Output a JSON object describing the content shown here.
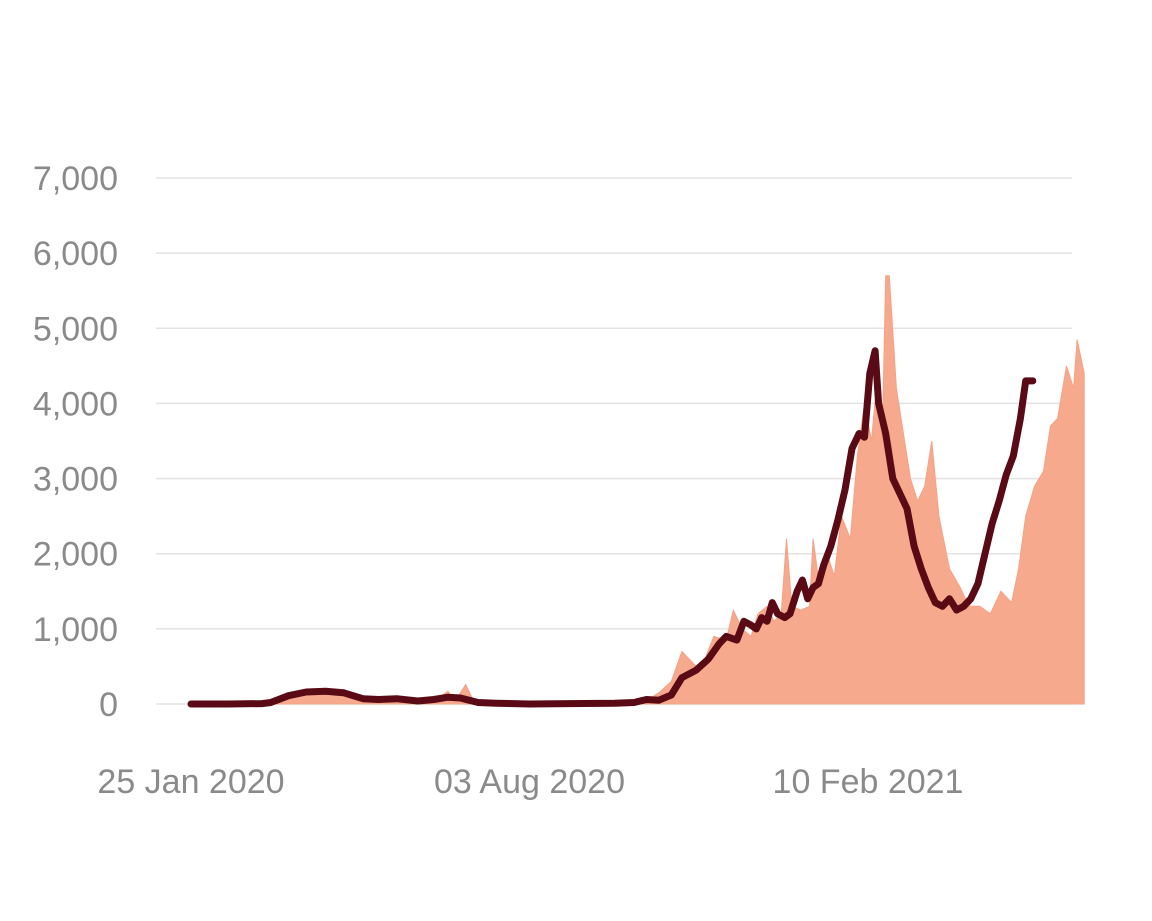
{
  "chart_data": {
    "type": "area",
    "title": "",
    "xlabel": "",
    "ylabel": "",
    "x_range": [
      "2020-01-25",
      "2021-06-15"
    ],
    "ylim": [
      0,
      7000
    ],
    "y_ticks": [
      0,
      1000,
      2000,
      3000,
      4000,
      5000,
      6000,
      7000
    ],
    "y_tick_labels": [
      "0",
      "1,000",
      "2,000",
      "3,000",
      "4,000",
      "5,000",
      "6,000",
      "7,000"
    ],
    "x_ticks": [
      "2020-01-25",
      "2020-08-03",
      "2021-02-10"
    ],
    "x_tick_labels": [
      "25 Jan 2020",
      "03 Aug 2020",
      "10 Feb 2021"
    ],
    "grid": true,
    "legend": "none",
    "colors": {
      "daily": "#f7a98e",
      "average": "#5a0a14",
      "grid": "#e3e3e3",
      "ticks": "#8a8a8a"
    },
    "series": [
      {
        "type": "area",
        "points": [
          [
            "2020-01-25",
            0
          ],
          [
            "2020-02-20",
            0
          ],
          [
            "2020-03-10",
            20
          ],
          [
            "2020-03-20",
            130
          ],
          [
            "2020-03-30",
            170
          ],
          [
            "2020-04-10",
            190
          ],
          [
            "2020-04-20",
            150
          ],
          [
            "2020-05-01",
            110
          ],
          [
            "2020-05-10",
            60
          ],
          [
            "2020-05-20",
            80
          ],
          [
            "2020-06-01",
            50
          ],
          [
            "2020-06-10",
            40
          ],
          [
            "2020-06-18",
            170
          ],
          [
            "2020-06-22",
            40
          ],
          [
            "2020-06-28",
            260
          ],
          [
            "2020-07-02",
            60
          ],
          [
            "2020-07-10",
            30
          ],
          [
            "2020-07-25",
            10
          ],
          [
            "2020-08-03",
            5
          ],
          [
            "2020-08-20",
            15
          ],
          [
            "2020-09-10",
            15
          ],
          [
            "2020-09-20",
            30
          ],
          [
            "2020-10-01",
            20
          ],
          [
            "2020-10-10",
            70
          ],
          [
            "2020-10-15",
            150
          ],
          [
            "2020-10-22",
            300
          ],
          [
            "2020-10-28",
            700
          ],
          [
            "2020-11-05",
            500
          ],
          [
            "2020-11-10",
            600
          ],
          [
            "2020-11-15",
            900
          ],
          [
            "2020-11-22",
            850
          ],
          [
            "2020-11-26",
            1250
          ],
          [
            "2020-12-01",
            1000
          ],
          [
            "2020-12-06",
            900
          ],
          [
            "2020-12-10",
            1200
          ],
          [
            "2020-12-15",
            1300
          ],
          [
            "2020-12-19",
            1100
          ],
          [
            "2020-12-23",
            1200
          ],
          [
            "2020-12-26",
            2200
          ],
          [
            "2020-12-29",
            1300
          ],
          [
            "2021-01-03",
            1250
          ],
          [
            "2021-01-08",
            1300
          ],
          [
            "2021-01-10",
            2200
          ],
          [
            "2021-01-14",
            1500
          ],
          [
            "2021-01-18",
            2000
          ],
          [
            "2021-01-22",
            1700
          ],
          [
            "2021-01-26",
            2500
          ],
          [
            "2021-01-31",
            2200
          ],
          [
            "2021-02-04",
            3300
          ],
          [
            "2021-02-08",
            4000
          ],
          [
            "2021-02-12",
            3500
          ],
          [
            "2021-02-15",
            4300
          ],
          [
            "2021-02-18",
            3500
          ],
          [
            "2021-02-20",
            5700
          ],
          [
            "2021-02-22",
            5700
          ],
          [
            "2021-02-26",
            4200
          ],
          [
            "2021-03-02",
            3600
          ],
          [
            "2021-03-06",
            3000
          ],
          [
            "2021-03-10",
            2700
          ],
          [
            "2021-03-14",
            2900
          ],
          [
            "2021-03-18",
            3500
          ],
          [
            "2021-03-22",
            2500
          ],
          [
            "2021-03-28",
            1800
          ],
          [
            "2021-04-03",
            1550
          ],
          [
            "2021-04-08",
            1300
          ],
          [
            "2021-04-14",
            1300
          ],
          [
            "2021-04-20",
            1200
          ],
          [
            "2021-04-26",
            1500
          ],
          [
            "2021-05-02",
            1350
          ],
          [
            "2021-05-06",
            1800
          ],
          [
            "2021-05-10",
            2500
          ],
          [
            "2021-05-15",
            2900
          ],
          [
            "2021-05-20",
            3100
          ],
          [
            "2021-05-24",
            3700
          ],
          [
            "2021-05-28",
            3800
          ],
          [
            "2021-06-02",
            4500
          ],
          [
            "2021-06-06",
            4200
          ],
          [
            "2021-06-08",
            4850
          ],
          [
            "2021-06-12",
            4400
          ]
        ]
      },
      {
        "type": "line",
        "points": [
          [
            "2020-01-25",
            0
          ],
          [
            "2020-02-15",
            0
          ],
          [
            "2020-03-05",
            5
          ],
          [
            "2020-03-10",
            20
          ],
          [
            "2020-03-20",
            110
          ],
          [
            "2020-03-30",
            160
          ],
          [
            "2020-04-10",
            170
          ],
          [
            "2020-04-20",
            150
          ],
          [
            "2020-05-01",
            70
          ],
          [
            "2020-05-10",
            60
          ],
          [
            "2020-05-20",
            70
          ],
          [
            "2020-06-01",
            40
          ],
          [
            "2020-06-10",
            60
          ],
          [
            "2020-06-18",
            90
          ],
          [
            "2020-06-25",
            80
          ],
          [
            "2020-07-05",
            20
          ],
          [
            "2020-07-15",
            10
          ],
          [
            "2020-08-03",
            0
          ],
          [
            "2020-08-25",
            5
          ],
          [
            "2020-09-20",
            10
          ],
          [
            "2020-10-01",
            20
          ],
          [
            "2020-10-08",
            60
          ],
          [
            "2020-10-15",
            50
          ],
          [
            "2020-10-22",
            120
          ],
          [
            "2020-10-28",
            350
          ],
          [
            "2020-11-05",
            450
          ],
          [
            "2020-11-12",
            600
          ],
          [
            "2020-11-18",
            800
          ],
          [
            "2020-11-22",
            900
          ],
          [
            "2020-11-28",
            850
          ],
          [
            "2020-12-02",
            1100
          ],
          [
            "2020-12-06",
            1050
          ],
          [
            "2020-12-09",
            1000
          ],
          [
            "2020-12-12",
            1150
          ],
          [
            "2020-12-15",
            1100
          ],
          [
            "2020-12-18",
            1350
          ],
          [
            "2020-12-21",
            1200
          ],
          [
            "2020-12-25",
            1150
          ],
          [
            "2020-12-28",
            1200
          ],
          [
            "2021-01-01",
            1500
          ],
          [
            "2021-01-04",
            1650
          ],
          [
            "2021-01-07",
            1400
          ],
          [
            "2021-01-10",
            1550
          ],
          [
            "2021-01-13",
            1600
          ],
          [
            "2021-01-16",
            1850
          ],
          [
            "2021-01-20",
            2100
          ],
          [
            "2021-01-24",
            2450
          ],
          [
            "2021-01-28",
            2850
          ],
          [
            "2021-02-01",
            3400
          ],
          [
            "2021-02-05",
            3600
          ],
          [
            "2021-02-08",
            3550
          ],
          [
            "2021-02-11",
            4400
          ],
          [
            "2021-02-14",
            4700
          ],
          [
            "2021-02-16",
            4000
          ],
          [
            "2021-02-20",
            3600
          ],
          [
            "2021-02-24",
            3000
          ],
          [
            "2021-02-28",
            2800
          ],
          [
            "2021-03-04",
            2600
          ],
          [
            "2021-03-08",
            2100
          ],
          [
            "2021-03-12",
            1800
          ],
          [
            "2021-03-16",
            1550
          ],
          [
            "2021-03-20",
            1350
          ],
          [
            "2021-03-24",
            1300
          ],
          [
            "2021-03-28",
            1400
          ],
          [
            "2021-04-01",
            1250
          ],
          [
            "2021-04-05",
            1300
          ],
          [
            "2021-04-09",
            1400
          ],
          [
            "2021-04-13",
            1600
          ],
          [
            "2021-04-17",
            2000
          ],
          [
            "2021-04-21",
            2400
          ],
          [
            "2021-04-25",
            2700
          ],
          [
            "2021-04-29",
            3050
          ],
          [
            "2021-05-03",
            3300
          ],
          [
            "2021-05-07",
            3800
          ],
          [
            "2021-05-10",
            4300
          ],
          [
            "2021-05-14",
            4300
          ]
        ]
      }
    ]
  }
}
